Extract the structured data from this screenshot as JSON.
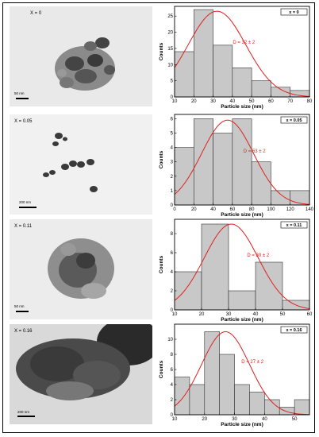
{
  "figure": {
    "panels": [
      {
        "tem_label": "X = 0",
        "scale_bar": "50 nm"
      },
      {
        "tem_label": "X = 0.05",
        "scale_bar": "200 nm"
      },
      {
        "tem_label": "X = 0.11",
        "scale_bar": "50 nm"
      },
      {
        "tem_label": "X = 0.16",
        "scale_bar": "200 nm"
      }
    ]
  },
  "colors": {
    "bar_fill": "#c8c8c8",
    "bar_stroke": "#333333",
    "fit_curve": "#e0201c",
    "annotation": "#e0201c"
  },
  "chart_data": [
    {
      "type": "bar",
      "legend": "x = 0",
      "annotation": "D = 32 ± 2",
      "xlabel": "Particle size (nm)",
      "ylabel": "Counts",
      "xlim": [
        10,
        80
      ],
      "ylim": [
        0,
        28
      ],
      "xticks": [
        10,
        20,
        30,
        40,
        50,
        60,
        70,
        80
      ],
      "yticks": [
        0,
        5,
        10,
        15,
        20,
        25
      ],
      "bins": [
        [
          10,
          20
        ],
        [
          20,
          30
        ],
        [
          30,
          40
        ],
        [
          40,
          50
        ],
        [
          50,
          60
        ],
        [
          60,
          70
        ],
        [
          70,
          80
        ]
      ],
      "values": [
        14,
        27,
        16,
        9,
        5,
        3,
        2
      ],
      "fit": {
        "type": "gaussian",
        "center": 32,
        "amplitude": 26.5,
        "sigma": 15
      }
    },
    {
      "type": "bar",
      "legend": "x = 0.05",
      "annotation": "D = 53 ± 2",
      "xlabel": "Particle size (nm)",
      "ylabel": "Counts",
      "xlim": [
        0,
        140
      ],
      "ylim": [
        0,
        6.3
      ],
      "xticks": [
        0,
        20,
        40,
        60,
        80,
        100,
        120,
        140
      ],
      "yticks": [
        0,
        1,
        2,
        3,
        4,
        5,
        6
      ],
      "bins": [
        [
          0,
          20
        ],
        [
          20,
          40
        ],
        [
          40,
          60
        ],
        [
          60,
          80
        ],
        [
          80,
          100
        ],
        [
          100,
          120
        ],
        [
          120,
          140
        ]
      ],
      "values": [
        4,
        6,
        5,
        6,
        3,
        1,
        1
      ],
      "fit": {
        "type": "gaussian",
        "center": 55,
        "amplitude": 5.9,
        "sigma": 27
      }
    },
    {
      "type": "bar",
      "legend": "x = 0.11",
      "annotation": "D = 30 ± 2",
      "xlabel": "Particle size (nm)",
      "ylabel": "Counts",
      "xlim": [
        10,
        60
      ],
      "ylim": [
        0,
        9.5
      ],
      "xticks": [
        10,
        20,
        30,
        40,
        50,
        60
      ],
      "yticks": [
        0,
        2,
        4,
        6,
        8
      ],
      "bins": [
        [
          10,
          20
        ],
        [
          20,
          30
        ],
        [
          30,
          40
        ],
        [
          40,
          50
        ],
        [
          50,
          60
        ]
      ],
      "values": [
        4,
        9,
        2,
        5,
        1
      ],
      "fit": {
        "type": "gaussian",
        "center": 31,
        "amplitude": 9,
        "sigma": 10
      }
    },
    {
      "type": "bar",
      "legend": "x = 0.16",
      "annotation": "D = 27 ± 2",
      "xlabel": "Particle size (nm)",
      "ylabel": "Counts",
      "xlim": [
        10,
        55
      ],
      "ylim": [
        0,
        12
      ],
      "xticks": [
        10,
        20,
        30,
        40,
        50
      ],
      "yticks": [
        0,
        2,
        4,
        6,
        8,
        10
      ],
      "bins": [
        [
          10,
          15
        ],
        [
          15,
          20
        ],
        [
          20,
          25
        ],
        [
          25,
          30
        ],
        [
          30,
          35
        ],
        [
          35,
          40
        ],
        [
          40,
          45
        ],
        [
          45,
          50
        ],
        [
          50,
          55
        ]
      ],
      "values": [
        5,
        4,
        11,
        8,
        4,
        3,
        2,
        1,
        2
      ],
      "fit": {
        "type": "gaussian",
        "center": 27,
        "amplitude": 11,
        "sigma": 8
      }
    }
  ]
}
